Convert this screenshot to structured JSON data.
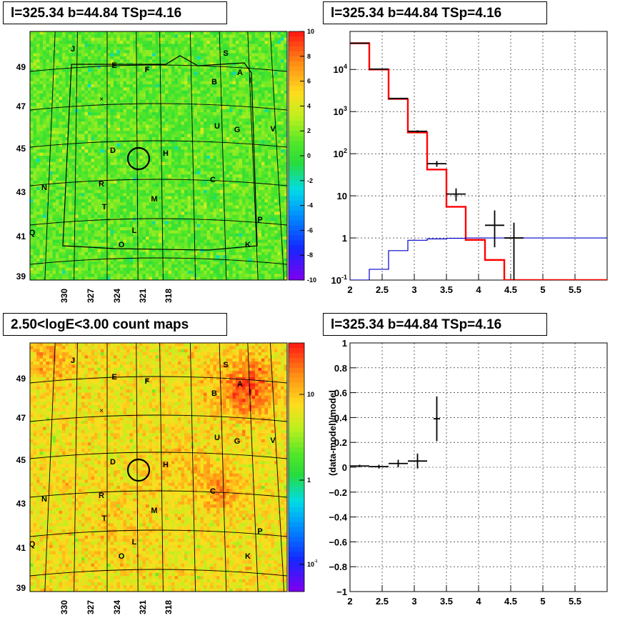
{
  "titles": {
    "top_left": "l=325.34 b=44.84 TSp=4.16",
    "top_right": "l=325.34 b=44.84 TSp=4.16",
    "bottom_left": "2.50<logE<3.00 count maps",
    "bottom_right": "l=325.34 b=44.84 TSp=4.16"
  },
  "chart_data": [
    {
      "type": "heatmap",
      "panel": "residual-map",
      "title": "l=325.34 b=44.84 TSp=4.16",
      "x_ticks": [
        "330",
        "327",
        "324",
        "321",
        "318"
      ],
      "y_ticks": [
        "49",
        "47",
        "45",
        "43",
        "41",
        "39"
      ],
      "colorbar": {
        "ticks": [
          "10",
          "8",
          "6",
          "4",
          "2",
          "0",
          "-2",
          "-4",
          "-6",
          "-8",
          "-10"
        ],
        "range": [
          -10,
          10
        ],
        "scale": "linear"
      },
      "markers": [
        "J",
        "S",
        "E",
        "F",
        "A",
        "I",
        "B",
        "U",
        "G",
        "V",
        "D",
        "H",
        "C",
        "N",
        "R",
        "M",
        "T",
        "P",
        "L",
        "Q",
        "O",
        "K"
      ],
      "colors": {
        "background": "#34d34a"
      }
    },
    {
      "type": "line",
      "panel": "spectrum",
      "title": "l=325.34 b=44.84 TSp=4.16",
      "x_ticks": [
        "2",
        "2.5",
        "3",
        "3.5",
        "4",
        "4.5",
        "5",
        "5.5"
      ],
      "y_ticks": [
        "10^4",
        "10^3",
        "10^2",
        "10",
        "1",
        "10^-1"
      ],
      "xlim": [
        2.0,
        6.0
      ],
      "ylim": [
        0.1,
        80000
      ],
      "yscale": "log",
      "grid": true,
      "series": [
        {
          "color": "#ff0000",
          "edges": [
            2.0,
            2.3,
            2.6,
            2.9,
            3.2,
            3.5,
            3.8,
            4.1,
            4.4,
            4.7,
            5.0,
            5.3,
            5.6,
            6.0
          ],
          "values": [
            42000,
            10000,
            2000,
            320,
            42,
            5.5,
            0.9,
            0.3,
            0.1,
            0.1,
            0.1,
            0.1,
            0.1
          ]
        },
        {
          "color": "#0000cc",
          "edges": [
            2.0,
            2.3,
            2.6,
            2.9,
            3.2,
            3.5,
            3.8,
            4.1,
            4.4,
            4.7,
            5.0,
            5.3,
            5.6,
            6.0
          ],
          "values": [
            0.1,
            0.18,
            0.5,
            0.88,
            0.95,
            0.98,
            1.0,
            1.0,
            1.0,
            1.0,
            1.0,
            1.0,
            1.0
          ]
        },
        {
          "color": "#000000",
          "points": [
            {
              "x": 2.15,
              "y": 42000,
              "xerr": 0.15,
              "ylo": 41000,
              "yhi": 43000
            },
            {
              "x": 2.45,
              "y": 10200,
              "xerr": 0.15,
              "ylo": 10000,
              "yhi": 10400
            },
            {
              "x": 2.75,
              "y": 2050,
              "xerr": 0.15,
              "ylo": 2000,
              "yhi": 2100
            },
            {
              "x": 3.05,
              "y": 340,
              "xerr": 0.15,
              "ylo": 320,
              "yhi": 360
            },
            {
              "x": 3.35,
              "y": 58,
              "xerr": 0.15,
              "ylo": 49,
              "yhi": 67
            },
            {
              "x": 3.65,
              "y": 11,
              "xerr": 0.15,
              "ylo": 7.5,
              "yhi": 15
            },
            {
              "x": 4.25,
              "y": 2.0,
              "xerr": 0.15,
              "ylo": 0.6,
              "yhi": 4.5
            },
            {
              "x": 4.55,
              "y": 1.0,
              "xerr": 0.15,
              "ylo": 0.1,
              "yhi": 2.3
            }
          ]
        }
      ]
    },
    {
      "type": "heatmap",
      "panel": "count-map",
      "title": "2.50<logE<3.00 count maps",
      "x_ticks": [
        "330",
        "327",
        "324",
        "321",
        "318"
      ],
      "y_ticks": [
        "49",
        "47",
        "45",
        "43",
        "41",
        "39"
      ],
      "colorbar": {
        "ticks": [
          "10",
          "1",
          "10^-1"
        ],
        "scale": "log"
      },
      "markers": [
        "J",
        "S",
        "E",
        "F",
        "A",
        "I",
        "B",
        "U",
        "G",
        "V",
        "D",
        "H",
        "C",
        "N",
        "R",
        "M",
        "T",
        "P",
        "L",
        "Q",
        "O",
        "K"
      ],
      "colors": {
        "background": "#f8c838"
      }
    },
    {
      "type": "scatter",
      "panel": "residual-ratio",
      "title": "l=325.34 b=44.84 TSp=4.16",
      "ylabel": "(data-model)/model",
      "x_ticks": [
        "2",
        "2.5",
        "3",
        "3.5",
        "4",
        "4.5",
        "5",
        "5.5"
      ],
      "y_ticks": [
        "1",
        "0.8",
        "0.6",
        "0.4",
        "0.2",
        "0",
        "−0.2",
        "−0.4",
        "−0.6",
        "−0.8",
        "−1"
      ],
      "xlim": [
        2.0,
        6.0
      ],
      "ylim": [
        -1,
        1
      ],
      "grid": true,
      "points": [
        {
          "x": 2.15,
          "y": 0.01,
          "xerr": 0.15,
          "yerr": 0.01
        },
        {
          "x": 2.45,
          "y": 0.005,
          "xerr": 0.15,
          "yerr": 0.015
        },
        {
          "x": 2.75,
          "y": 0.03,
          "xerr": 0.15,
          "yerr": 0.03
        },
        {
          "x": 3.05,
          "y": 0.05,
          "xerr": 0.15,
          "yerr": 0.06
        },
        {
          "x": 3.35,
          "y": 0.39,
          "xerr": 0.05,
          "yerr": 0.18
        }
      ]
    }
  ]
}
